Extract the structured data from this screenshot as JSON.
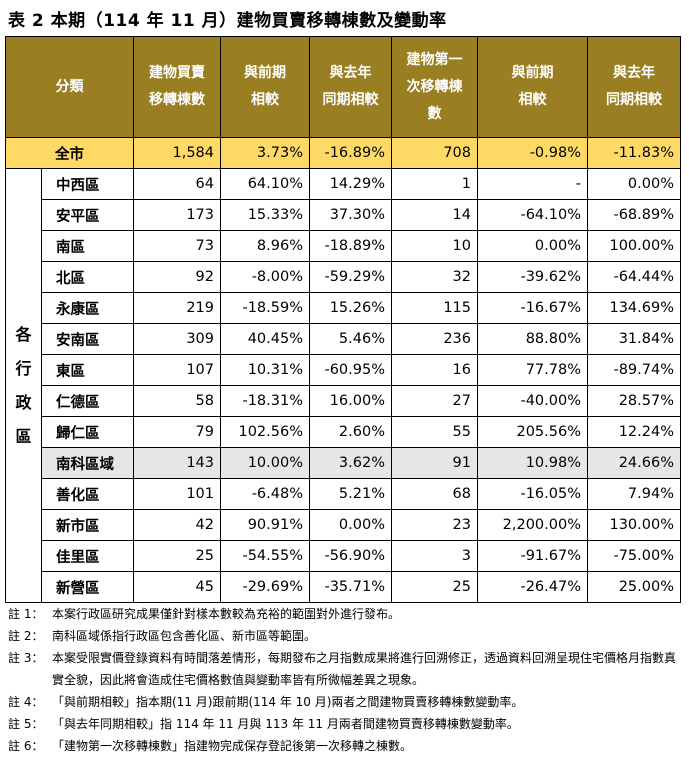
{
  "title": "表 2 本期（114 年 11 月）建物買賣移轉棟數及變動率",
  "headers": {
    "category": "分類",
    "transfers": [
      "建物買賣",
      "移轉棟數"
    ],
    "mom1": [
      "與前期",
      "相較"
    ],
    "yoy1": [
      "與去年",
      "同期相較"
    ],
    "first": [
      "建物第一",
      "次移轉棟",
      "數"
    ],
    "mom2": [
      "與前期",
      "相較"
    ],
    "yoy2": [
      "與去年",
      "同期相較"
    ]
  },
  "total": {
    "name": "全市",
    "transfers": "1,584",
    "mom1": "3.73%",
    "yoy1": "-16.89%",
    "first": "708",
    "mom2": "-0.98%",
    "yoy2": "-11.83%"
  },
  "group_label": [
    "各",
    "行",
    "政",
    "區"
  ],
  "rows": [
    {
      "name": "中西區",
      "transfers": "64",
      "mom1": "64.10%",
      "yoy1": "14.29%",
      "first": "1",
      "mom2": "-",
      "yoy2": "0.00%"
    },
    {
      "name": "安平區",
      "transfers": "173",
      "mom1": "15.33%",
      "yoy1": "37.30%",
      "first": "14",
      "mom2": "-64.10%",
      "yoy2": "-68.89%"
    },
    {
      "name": "南區",
      "transfers": "73",
      "mom1": "8.96%",
      "yoy1": "-18.89%",
      "first": "10",
      "mom2": "0.00%",
      "yoy2": "100.00%"
    },
    {
      "name": "北區",
      "transfers": "92",
      "mom1": "-8.00%",
      "yoy1": "-59.29%",
      "first": "32",
      "mom2": "-39.62%",
      "yoy2": "-64.44%"
    },
    {
      "name": "永康區",
      "transfers": "219",
      "mom1": "-18.59%",
      "yoy1": "15.26%",
      "first": "115",
      "mom2": "-16.67%",
      "yoy2": "134.69%"
    },
    {
      "name": "安南區",
      "transfers": "309",
      "mom1": "40.45%",
      "yoy1": "5.46%",
      "first": "236",
      "mom2": "88.80%",
      "yoy2": "31.84%"
    },
    {
      "name": "東區",
      "transfers": "107",
      "mom1": "10.31%",
      "yoy1": "-60.95%",
      "first": "16",
      "mom2": "77.78%",
      "yoy2": "-89.74%"
    },
    {
      "name": "仁德區",
      "transfers": "58",
      "mom1": "-18.31%",
      "yoy1": "16.00%",
      "first": "27",
      "mom2": "-40.00%",
      "yoy2": "28.57%"
    },
    {
      "name": "歸仁區",
      "transfers": "79",
      "mom1": "102.56%",
      "yoy1": "2.60%",
      "first": "55",
      "mom2": "205.56%",
      "yoy2": "12.24%"
    },
    {
      "name": "南科區域",
      "transfers": "143",
      "mom1": "10.00%",
      "yoy1": "3.62%",
      "first": "91",
      "mom2": "10.98%",
      "yoy2": "24.66%"
    },
    {
      "name": "善化區",
      "transfers": "101",
      "mom1": "-6.48%",
      "yoy1": "5.21%",
      "first": "68",
      "mom2": "-16.05%",
      "yoy2": "7.94%"
    },
    {
      "name": "新市區",
      "transfers": "42",
      "mom1": "90.91%",
      "yoy1": "0.00%",
      "first": "23",
      "mom2": "2,200.00%",
      "yoy2": "130.00%"
    },
    {
      "name": "佳里區",
      "transfers": "25",
      "mom1": "-54.55%",
      "yoy1": "-56.90%",
      "first": "3",
      "mom2": "-91.67%",
      "yoy2": "-75.00%"
    },
    {
      "name": "新營區",
      "transfers": "45",
      "mom1": "-29.69%",
      "yoy1": "-35.71%",
      "first": "25",
      "mom2": "-26.47%",
      "yoy2": "25.00%"
    }
  ],
  "colors": {
    "header_bg": "#9a7f22",
    "total_bg": "#ffd966",
    "highlight_bg": "#e6e6e6"
  },
  "notes": [
    {
      "key": "註 1：",
      "text": "本案行政區研究成果僅針對樣本數較為充裕的範圍對外進行發布。"
    },
    {
      "key": "註 2：",
      "text": "南科區域係指行政區包含善化區、新市區等範圍。"
    },
    {
      "key": "註 3：",
      "text": "本案受限實價登錄資料有時間落差情形，每期發布之月指數成果將進行回溯修正，透過資料回溯呈現住宅價格月指數真實全貌，因此將會造成住宅價格數值與變動率皆有所微幅差異之現象。"
    },
    {
      "key": "註 4：",
      "text": "「與前期相較」指本期(11 月)跟前期(114 年 10 月)兩者之間建物買賣移轉棟數變動率。"
    },
    {
      "key": "註 5：",
      "text": "「與去年同期相較」指 114 年 11 月與 113 年 11 月兩者間建物買賣移轉棟數變動率。"
    },
    {
      "key": "註 6：",
      "text": "「建物第一次移轉棟數」指建物完成保存登記後第一次移轉之棟數。"
    }
  ]
}
